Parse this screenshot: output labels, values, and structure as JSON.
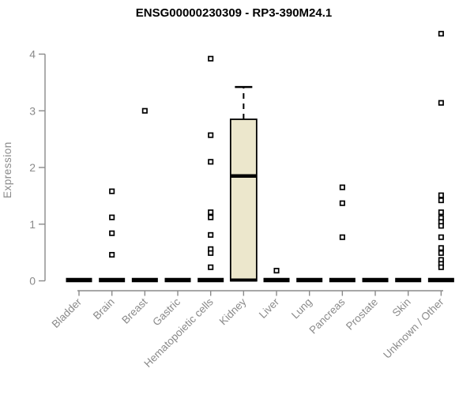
{
  "chart_data": {
    "type": "boxplot",
    "title": "ENSG00000230309 - RP3-390M24.1",
    "ylabel": "Expression",
    "xlabel": "",
    "ylim": [
      0,
      4.4
    ],
    "yticks": [
      0,
      1,
      2,
      3,
      4
    ],
    "grid": false,
    "legend": "none",
    "categories": [
      "Bladder",
      "Brain",
      "Breast",
      "Gastric",
      "Hematopoietic cells",
      "Kidney",
      "Liver",
      "Lung",
      "Pancreas",
      "Prostate",
      "Skin",
      "Unknown / Other"
    ],
    "boxes": [
      {
        "category": "Bladder",
        "q1": 0,
        "median": 0,
        "q3": 0,
        "whisker_low": 0,
        "whisker_high": 0,
        "outliers": []
      },
      {
        "category": "Brain",
        "q1": 0,
        "median": 0,
        "q3": 0,
        "whisker_low": 0,
        "whisker_high": 0,
        "outliers": [
          1.58,
          1.12,
          0.84,
          0.46
        ]
      },
      {
        "category": "Breast",
        "q1": 0,
        "median": 0,
        "q3": 0,
        "whisker_low": 0,
        "whisker_high": 0,
        "outliers": [
          3.0
        ]
      },
      {
        "category": "Gastric",
        "q1": 0,
        "median": 0,
        "q3": 0,
        "whisker_low": 0,
        "whisker_high": 0,
        "outliers": []
      },
      {
        "category": "Hematopoietic cells",
        "q1": 0,
        "median": 0,
        "q3": 0,
        "whisker_low": 0,
        "whisker_high": 0,
        "outliers": [
          3.92,
          2.57,
          2.1,
          1.21,
          1.12,
          0.81,
          0.56,
          0.49,
          0.24
        ]
      },
      {
        "category": "Kidney",
        "q1": 0,
        "median": 1.85,
        "q3": 2.85,
        "whisker_low": 0,
        "whisker_high": 3.42,
        "outliers": []
      },
      {
        "category": "Liver",
        "q1": 0,
        "median": 0,
        "q3": 0,
        "whisker_low": 0,
        "whisker_high": 0,
        "outliers": [
          0.18
        ]
      },
      {
        "category": "Lung",
        "q1": 0,
        "median": 0,
        "q3": 0,
        "whisker_low": 0,
        "whisker_high": 0,
        "outliers": []
      },
      {
        "category": "Pancreas",
        "q1": 0,
        "median": 0,
        "q3": 0,
        "whisker_low": 0,
        "whisker_high": 0,
        "outliers": [
          1.65,
          1.37,
          0.77
        ]
      },
      {
        "category": "Prostate",
        "q1": 0,
        "median": 0,
        "q3": 0,
        "whisker_low": 0,
        "whisker_high": 0,
        "outliers": []
      },
      {
        "category": "Skin",
        "q1": 0,
        "median": 0,
        "q3": 0,
        "whisker_low": 0,
        "whisker_high": 0,
        "outliers": []
      },
      {
        "category": "Unknown / Other",
        "q1": 0,
        "median": 0,
        "q3": 0,
        "whisker_low": 0,
        "whisker_high": 0,
        "outliers": [
          4.36,
          3.14,
          1.51,
          1.42,
          1.21,
          1.11,
          1.04,
          0.97,
          0.77,
          0.58,
          0.49,
          0.37,
          0.3,
          0.24
        ]
      }
    ],
    "colors": {
      "box_fill": "#ECE7CC",
      "box_outline": "#000000",
      "median": "#000000",
      "axis": "#8a8a8a",
      "tick_label": "#8a8a8a",
      "title": "#000000",
      "background": "#ffffff"
    }
  }
}
